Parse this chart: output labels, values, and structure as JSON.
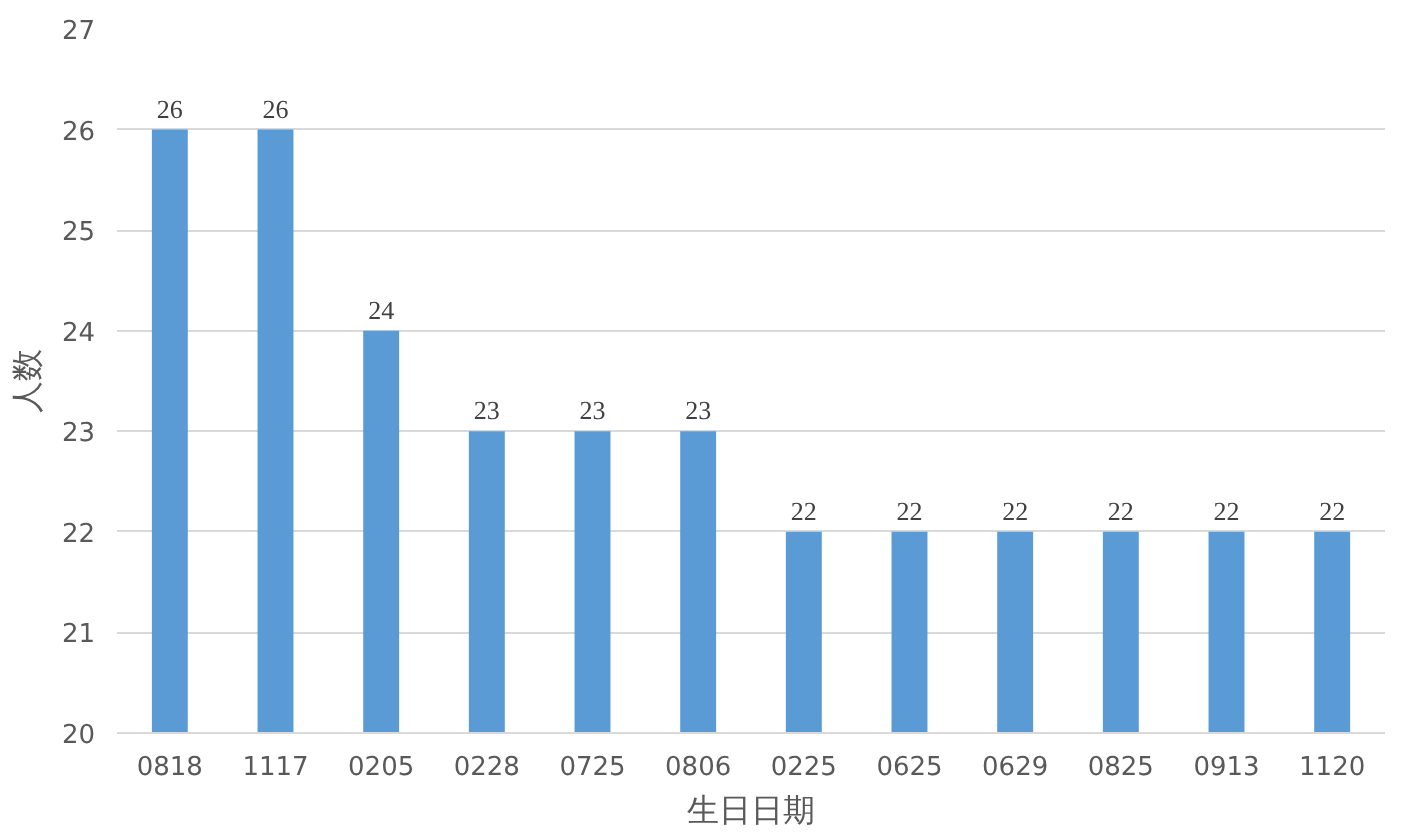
{
  "chart_data": {
    "type": "bar",
    "xlabel": "生日日期",
    "ylabel": "人数",
    "categories": [
      "0818",
      "1117",
      "0205",
      "0228",
      "0725",
      "0806",
      "0225",
      "0625",
      "0629",
      "0825",
      "0913",
      "1120"
    ],
    "values": [
      26,
      26,
      24,
      23,
      23,
      23,
      22,
      22,
      22,
      22,
      22,
      22
    ],
    "color": "#5b9bd5",
    "ylim": [
      20,
      27
    ],
    "yticks": [
      20,
      21,
      22,
      23,
      24,
      25,
      26,
      27
    ],
    "grid": "y",
    "data_labels": true
  }
}
